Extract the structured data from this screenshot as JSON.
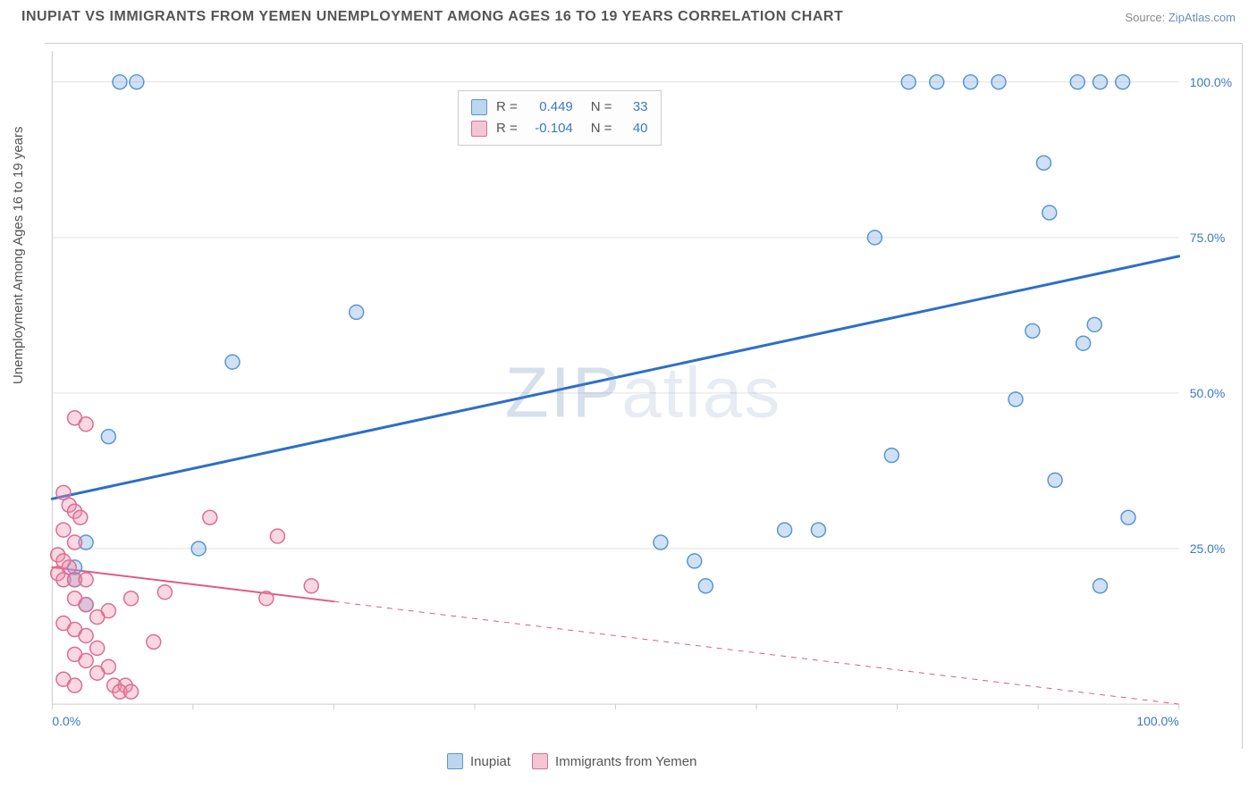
{
  "header": {
    "title": "INUPIAT VS IMMIGRANTS FROM YEMEN UNEMPLOYMENT AMONG AGES 16 TO 19 YEARS CORRELATION CHART",
    "source_prefix": "Source: ",
    "source_name": "ZipAtlas.com"
  },
  "watermark": {
    "zip": "ZIP",
    "atlas": "atlas"
  },
  "chart": {
    "type": "scatter",
    "ylabel": "Unemployment Among Ages 16 to 19 years",
    "xlim": [
      0,
      100
    ],
    "ylim": [
      0,
      105
    ],
    "x_ticks": [
      0,
      12.5,
      25,
      37.5,
      50,
      62.5,
      75,
      87.5,
      100
    ],
    "y_gridlines": [
      25,
      50,
      75,
      100
    ],
    "x_axis_labels": [
      {
        "v": 0,
        "t": "0.0%"
      },
      {
        "v": 100,
        "t": "100.0%"
      }
    ],
    "y_axis_labels": [
      {
        "v": 25,
        "t": "25.0%"
      },
      {
        "v": 50,
        "t": "50.0%"
      },
      {
        "v": 75,
        "t": "75.0%"
      },
      {
        "v": 100,
        "t": "100.0%"
      }
    ],
    "background_color": "#ffffff",
    "grid_color": "#e2e2e2",
    "axis_color": "#cccccc",
    "label_color": "#3b78c4",
    "marker_radius": 8,
    "marker_stroke_width": 1.5,
    "series": [
      {
        "name": "Inupiat",
        "color_fill": "rgba(120,170,225,0.35)",
        "color_stroke": "#5a96d0",
        "swatch_fill": "#bcd6ef",
        "swatch_stroke": "#5a96d0",
        "R": "0.449",
        "N": "33",
        "trend": {
          "x1": 0,
          "y1": 33,
          "x2": 100,
          "y2": 72,
          "solid_to_x": 100,
          "color": "#2d6fc9",
          "width": 3
        },
        "points": [
          [
            6,
            100
          ],
          [
            7.5,
            100
          ],
          [
            76,
            100
          ],
          [
            78.5,
            100
          ],
          [
            81.5,
            100
          ],
          [
            84,
            100
          ],
          [
            91,
            100
          ],
          [
            93,
            100
          ],
          [
            95,
            100
          ],
          [
            88,
            87
          ],
          [
            88.5,
            79
          ],
          [
            73,
            75
          ],
          [
            27,
            63
          ],
          [
            16,
            55
          ],
          [
            87,
            60
          ],
          [
            92.5,
            61
          ],
          [
            91.5,
            58
          ],
          [
            85.5,
            49
          ],
          [
            5,
            43
          ],
          [
            74.5,
            40
          ],
          [
            89,
            36
          ],
          [
            95.5,
            30
          ],
          [
            3,
            26
          ],
          [
            13,
            25
          ],
          [
            54,
            26
          ],
          [
            65,
            28
          ],
          [
            68,
            28
          ],
          [
            57,
            23
          ],
          [
            58,
            19
          ],
          [
            93,
            19
          ],
          [
            3,
            16
          ],
          [
            2,
            20
          ],
          [
            2,
            22
          ]
        ]
      },
      {
        "name": "Immigrants from Yemen",
        "color_fill": "rgba(240,140,170,0.35)",
        "color_stroke": "#d86f94",
        "swatch_fill": "#f3c6d4",
        "swatch_stroke": "#d86f94",
        "R": "-0.104",
        "N": "40",
        "trend": {
          "x1": 0,
          "y1": 22,
          "x2": 100,
          "y2": 0,
          "solid_to_x": 25,
          "color": "#de5b86",
          "width": 2
        },
        "points": [
          [
            2,
            46
          ],
          [
            3,
            45
          ],
          [
            1,
            34
          ],
          [
            1.5,
            32
          ],
          [
            2,
            31
          ],
          [
            2.5,
            30
          ],
          [
            14,
            30
          ],
          [
            1,
            28
          ],
          [
            2,
            26
          ],
          [
            0.5,
            24
          ],
          [
            1,
            23
          ],
          [
            1.5,
            22
          ],
          [
            0.5,
            21
          ],
          [
            1,
            20
          ],
          [
            2,
            20
          ],
          [
            3,
            20
          ],
          [
            20,
            27
          ],
          [
            23,
            19
          ],
          [
            10,
            18
          ],
          [
            7,
            17
          ],
          [
            19,
            17
          ],
          [
            2,
            17
          ],
          [
            3,
            16
          ],
          [
            5,
            15
          ],
          [
            4,
            14
          ],
          [
            1,
            13
          ],
          [
            2,
            12
          ],
          [
            3,
            11
          ],
          [
            9,
            10
          ],
          [
            4,
            9
          ],
          [
            2,
            8
          ],
          [
            3,
            7
          ],
          [
            5,
            6
          ],
          [
            4,
            5
          ],
          [
            1,
            4
          ],
          [
            5.5,
            3
          ],
          [
            6.5,
            3
          ],
          [
            6,
            2
          ],
          [
            7,
            2
          ],
          [
            2,
            3
          ]
        ]
      }
    ]
  },
  "legend": {
    "items": [
      {
        "label": "Inupiat",
        "fill": "#bcd6ef",
        "stroke": "#5a96d0"
      },
      {
        "label": "Immigrants from Yemen",
        "fill": "#f3c6d4",
        "stroke": "#d86f94"
      }
    ]
  },
  "stats_box": {
    "r_label": "R =",
    "n_label": "N ="
  }
}
